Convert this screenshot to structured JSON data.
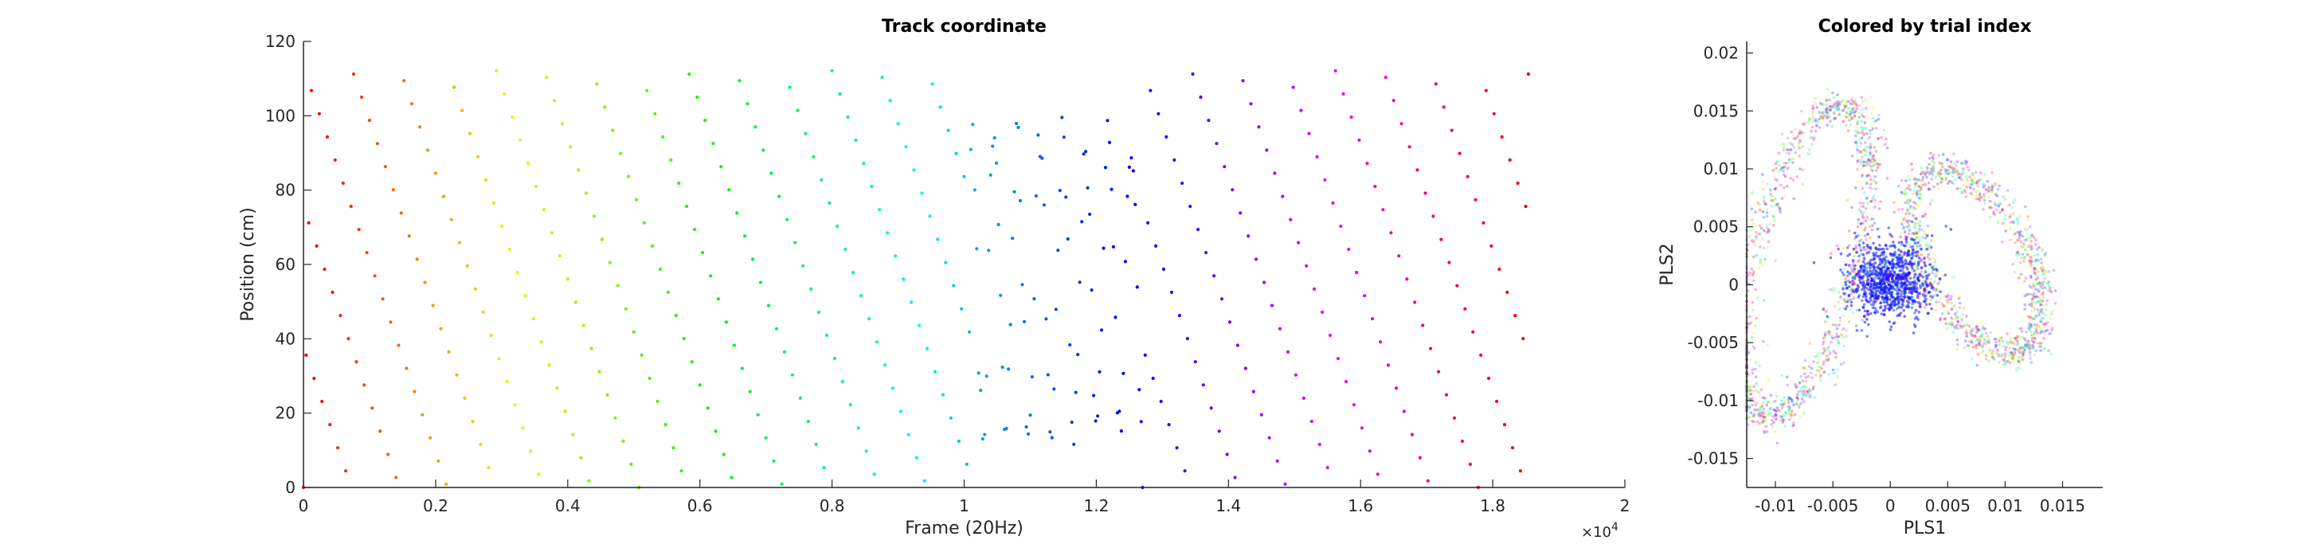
{
  "chart_data": [
    {
      "type": "scatter",
      "title": "Track coordinate",
      "xlabel": "Frame (20Hz)",
      "ylabel": "Position (cm)",
      "xlim": [
        0,
        20000
      ],
      "ylim": [
        0,
        120
      ],
      "x_axis_exponent": "×10^4",
      "x_ticks": [
        0,
        2000,
        4000,
        6000,
        8000,
        10000,
        12000,
        14000,
        16000,
        18000,
        20000
      ],
      "x_tick_labels": [
        "0",
        "0.2",
        "0.4",
        "0.6",
        "0.8",
        "1",
        "1.2",
        "1.4",
        "1.6",
        "1.8",
        "2"
      ],
      "y_ticks": [
        0,
        20,
        40,
        60,
        80,
        100,
        120
      ],
      "y_tick_labels": [
        "0",
        "20",
        "40",
        "60",
        "80",
        "100",
        "120"
      ],
      "color_encoding": "hue by trial index (red → yellow → green → cyan → blue → violet → magenta → red)",
      "series_segments": [
        {
          "description": "regular laps",
          "x_range": [
            0,
            10100
          ],
          "trial_range": [
            0,
            79
          ],
          "lap_length_frames": 127,
          "y_range": [
            0,
            113
          ]
        },
        {
          "description": "irregular partial laps",
          "x_range": [
            10100,
            12700
          ],
          "trial_range": [
            80,
            99
          ],
          "y_range": [
            5,
            117
          ]
        },
        {
          "description": "regular laps",
          "x_range": [
            12700,
            18550
          ],
          "trial_range": [
            100,
            145
          ],
          "lap_length_frames": 127,
          "y_range": [
            0,
            113
          ]
        }
      ],
      "grid": false
    },
    {
      "type": "scatter",
      "title": "Colored by trial index",
      "xlabel": "PLS1",
      "ylabel": "PLS2",
      "xlim": [
        -0.0125,
        0.0185
      ],
      "ylim": [
        -0.0175,
        0.021
      ],
      "x_ticks": [
        -0.01,
        -0.005,
        0,
        0.005,
        0.01,
        0.015
      ],
      "x_tick_labels": [
        "-0.01",
        "-0.005",
        "0",
        "0.005",
        "0.01",
        "0.015"
      ],
      "y_ticks": [
        -0.015,
        -0.01,
        -0.005,
        0,
        0.005,
        0.01,
        0.015,
        0.02
      ],
      "y_tick_labels": [
        "-0.015",
        "-0.01",
        "-0.005",
        "0",
        "0.005",
        "0.01",
        "0.015",
        "0.02"
      ],
      "color_encoding": "hue by trial index",
      "clusters": [
        {
          "description": "left lobe",
          "center": [
            -0.0075,
            0.002
          ]
        },
        {
          "description": "right lobe",
          "center": [
            0.0075,
            0.002
          ]
        },
        {
          "description": "central dense cluster (irregular trials)",
          "center": [
            0.0,
            0.0
          ]
        }
      ],
      "grid": false
    }
  ]
}
